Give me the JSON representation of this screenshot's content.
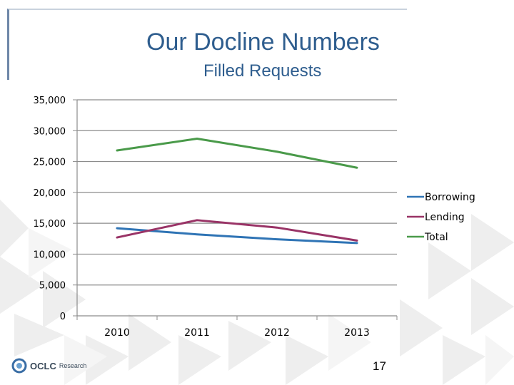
{
  "slide": {
    "title": "Our Docline Numbers",
    "subtitle": "Filled Requests",
    "page_number": "17",
    "logo_text": "OCLC",
    "logo_sub": "Research"
  },
  "colors": {
    "title": "#2e5d8e",
    "borrowing": "#2f74b5",
    "lending": "#993366",
    "total": "#4a9a4a",
    "gridline": "#8c8c8c"
  },
  "chart_data": {
    "type": "line",
    "categories": [
      "2010",
      "2011",
      "2012",
      "2013"
    ],
    "series": [
      {
        "name": "Borrowing",
        "values": [
          14200,
          13200,
          12400,
          11800
        ]
      },
      {
        "name": "Lending",
        "values": [
          12700,
          15500,
          14300,
          12200
        ]
      },
      {
        "name": "Total",
        "values": [
          26800,
          28700,
          26600,
          24000
        ]
      }
    ],
    "ylim": [
      0,
      35000
    ],
    "yticks": [
      "0",
      "5,000",
      "10,000",
      "15,000",
      "20,000",
      "25,000",
      "30,000",
      "35,000"
    ],
    "grid": true,
    "legend": "right"
  }
}
